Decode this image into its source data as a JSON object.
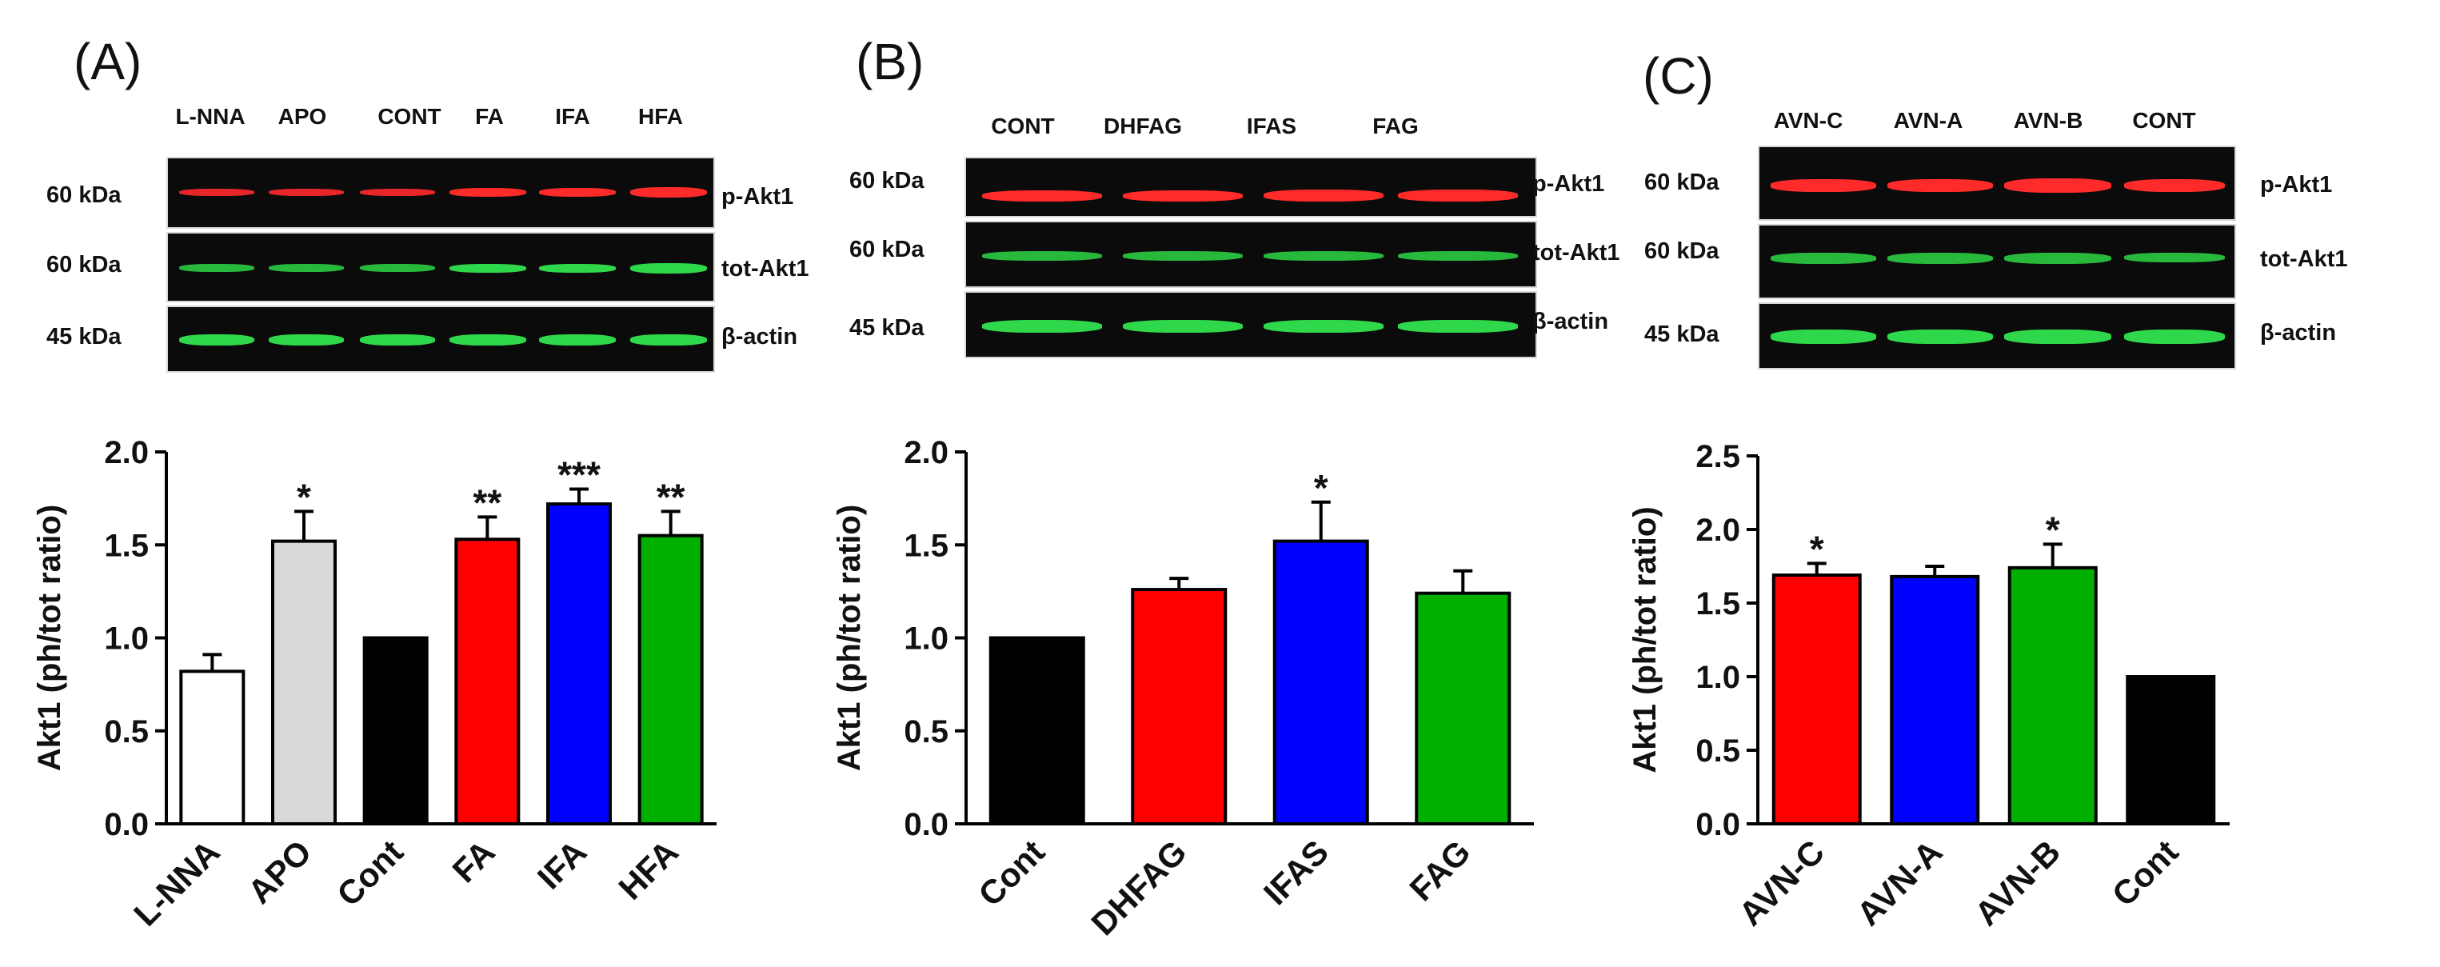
{
  "colors": {
    "blot_background": "#0b0b0b",
    "red_band": "#ff2a2a",
    "green_band": "#2fd84a",
    "white_bar": "#ffffff",
    "grey_bar": "#d9d9d9",
    "black_bar": "#000000",
    "red_bar": "#ff0000",
    "blue_bar": "#0000ff",
    "green_bar": "#00b000"
  },
  "panels": [
    {
      "label": "(A)",
      "blot": {
        "lanes": [
          "L-NNA",
          "APO",
          "CONT",
          "FA",
          "IFA",
          "HFA"
        ],
        "rows": [
          {
            "kda": "60 kDa",
            "protein": "p-Akt1",
            "band_color": "red"
          },
          {
            "kda": "60 kDa",
            "protein": "tot-Akt1",
            "band_color": "green"
          },
          {
            "kda": "45 kDa",
            "protein": "β-actin",
            "band_color": "green"
          }
        ]
      }
    },
    {
      "label": "(B)",
      "blot": {
        "lanes": [
          "CONT",
          "DHFAG",
          "IFAS",
          "FAG"
        ],
        "rows": [
          {
            "kda": "60 kDa",
            "protein": "p-Akt1",
            "band_color": "red"
          },
          {
            "kda": "60 kDa",
            "protein": "tot-Akt1",
            "band_color": "green"
          },
          {
            "kda": "45 kDa",
            "protein": "β-actin",
            "band_color": "green"
          }
        ]
      }
    },
    {
      "label": "(C)",
      "blot": {
        "lanes": [
          "AVN-C",
          "AVN-A",
          "AVN-B",
          "CONT"
        ],
        "rows": [
          {
            "kda": "60 kDa",
            "protein": "p-Akt1",
            "band_color": "red"
          },
          {
            "kda": "60 kDa",
            "protein": "tot-Akt1",
            "band_color": "green"
          },
          {
            "kda": "45 kDa",
            "protein": "β-actin",
            "band_color": "green"
          }
        ]
      }
    }
  ],
  "chart_data": [
    {
      "type": "bar",
      "panel": "(A)",
      "title": "",
      "ylabel": "Akt1 (ph/tot ratio)",
      "xlabel": "",
      "ylim": [
        0,
        2.0
      ],
      "yticks": [
        "0.0",
        "0.5",
        "1.0",
        "1.5",
        "2.0"
      ],
      "categories": [
        "L-NNA",
        "APO",
        "Cont",
        "FA",
        "IFA",
        "HFA"
      ],
      "values": [
        0.82,
        1.52,
        1.0,
        1.53,
        1.72,
        1.55
      ],
      "errors": [
        0.09,
        0.16,
        0.0,
        0.12,
        0.08,
        0.13
      ],
      "bar_colors": [
        "#ffffff",
        "#d9d9d9",
        "#000000",
        "#ff0000",
        "#0000ff",
        "#00b000"
      ],
      "significance": [
        "",
        "*",
        "",
        "**",
        "***",
        "**"
      ]
    },
    {
      "type": "bar",
      "panel": "(B)",
      "title": "",
      "ylabel": "Akt1 (ph/tot ratio)",
      "xlabel": "",
      "ylim": [
        0,
        2.0
      ],
      "yticks": [
        "0.0",
        "0.5",
        "1.0",
        "1.5",
        "2.0"
      ],
      "categories": [
        "Cont",
        "DHFAG",
        "IFAS",
        "FAG"
      ],
      "values": [
        1.0,
        1.26,
        1.52,
        1.24
      ],
      "errors": [
        0.0,
        0.06,
        0.21,
        0.12
      ],
      "bar_colors": [
        "#000000",
        "#ff0000",
        "#0000ff",
        "#00b000"
      ],
      "significance": [
        "",
        "",
        "*",
        ""
      ]
    },
    {
      "type": "bar",
      "panel": "(C)",
      "title": "",
      "ylabel": "Akt1 (ph/tot ratio)",
      "xlabel": "",
      "ylim": [
        0,
        2.5
      ],
      "yticks": [
        "0.0",
        "0.5",
        "1.0",
        "1.5",
        "2.0",
        "2.5"
      ],
      "categories": [
        "AVN-C",
        "AVN-A",
        "AVN-B",
        "Cont"
      ],
      "values": [
        1.69,
        1.68,
        1.74,
        1.0
      ],
      "errors": [
        0.08,
        0.07,
        0.16,
        0.0
      ],
      "bar_colors": [
        "#ff0000",
        "#0000ff",
        "#00b000",
        "#000000"
      ],
      "significance": [
        "*",
        "",
        "*",
        ""
      ]
    }
  ]
}
